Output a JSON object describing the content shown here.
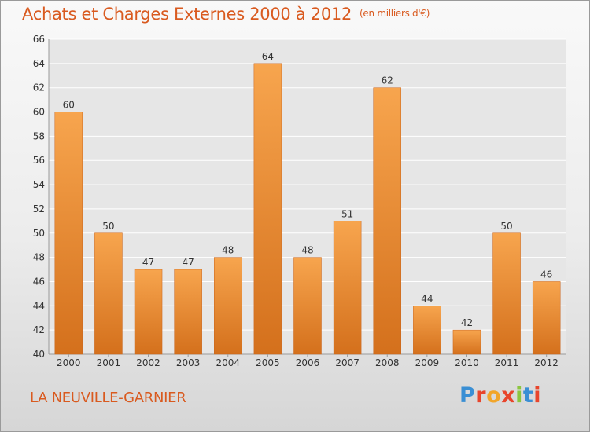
{
  "header": {
    "title": "Achats et Charges Externes 2000 à 2012",
    "subtitle": "(en milliers d'€)"
  },
  "footer": {
    "place": "LA NEUVILLE-GARNIER",
    "logo": "Proxiti",
    "logo_colors": [
      "#3a8fd4",
      "#e8452c",
      "#f2a62a",
      "#e8452c",
      "#8cc63f",
      "#3a8fd4",
      "#e8452c"
    ]
  },
  "colors": {
    "bar_light": "#f7a54e",
    "bar_dark": "#d4701c",
    "title": "#d95a1f"
  },
  "chart_data": {
    "type": "bar",
    "title": "Achats et Charges Externes 2000 à 2012",
    "categories": [
      "2000",
      "2001",
      "2002",
      "2003",
      "2004",
      "2005",
      "2006",
      "2007",
      "2008",
      "2009",
      "2010",
      "2011",
      "2012"
    ],
    "values": [
      60,
      50,
      47,
      47,
      48,
      64,
      48,
      51,
      62,
      44,
      42,
      50,
      46
    ],
    "ylim": [
      40,
      66
    ],
    "yticks": [
      40,
      42,
      44,
      46,
      48,
      50,
      52,
      54,
      56,
      58,
      60,
      62,
      64,
      66
    ],
    "grid": true,
    "xlabel": "",
    "ylabel": ""
  }
}
